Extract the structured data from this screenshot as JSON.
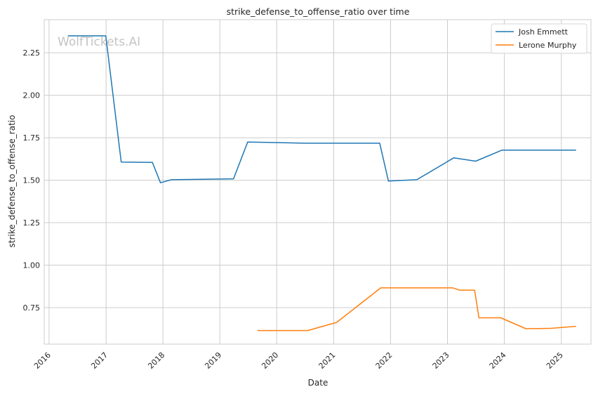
{
  "chart_data": {
    "type": "line",
    "title": "strike_defense_to_offense_ratio over time",
    "xlabel": "Date",
    "ylabel": "strike_defense_to_offense_ratio",
    "watermark": "WolfTickets.AI",
    "xlim": [
      "2015-12-01",
      "2025-07-10"
    ],
    "ylim": [
      0.535,
      2.445
    ],
    "x_ticks": [
      "2016",
      "2017",
      "2018",
      "2019",
      "2020",
      "2021",
      "2022",
      "2023",
      "2024",
      "2025"
    ],
    "y_ticks": [
      "0.75",
      "1.00",
      "1.25",
      "1.50",
      "1.75",
      "2.00",
      "2.25"
    ],
    "grid": true,
    "legend_position": "top-right",
    "series": [
      {
        "name": "Josh Emmett",
        "color": "#1f77b4",
        "points": [
          [
            "2016-05-01",
            2.35
          ],
          [
            "2016-12-30",
            2.35
          ],
          [
            "2017-04-08",
            1.607
          ],
          [
            "2017-10-25",
            1.605
          ],
          [
            "2017-12-16",
            1.485
          ],
          [
            "2018-02-24",
            1.503
          ],
          [
            "2019-03-30",
            1.508
          ],
          [
            "2019-06-29",
            1.725
          ],
          [
            "2020-07-01",
            1.718
          ],
          [
            "2021-10-23",
            1.718
          ],
          [
            "2021-12-18",
            1.495
          ],
          [
            "2022-06-18",
            1.503
          ],
          [
            "2023-02-11",
            1.632
          ],
          [
            "2023-07-01",
            1.612
          ],
          [
            "2023-12-16",
            1.677
          ],
          [
            "2025-04-05",
            1.677
          ]
        ]
      },
      {
        "name": "Lerone Murphy",
        "color": "#ff7f0e",
        "points": [
          [
            "2019-08-31",
            0.615
          ],
          [
            "2020-07-19",
            0.615
          ],
          [
            "2021-01-20",
            0.663
          ],
          [
            "2021-10-30",
            0.866
          ],
          [
            "2023-02-04",
            0.866
          ],
          [
            "2023-03-18",
            0.853
          ],
          [
            "2023-06-24",
            0.853
          ],
          [
            "2023-07-22",
            0.69
          ],
          [
            "2023-12-09",
            0.69
          ],
          [
            "2024-05-18",
            0.626
          ],
          [
            "2024-10-26",
            0.628
          ],
          [
            "2025-04-05",
            0.64
          ]
        ]
      }
    ]
  }
}
